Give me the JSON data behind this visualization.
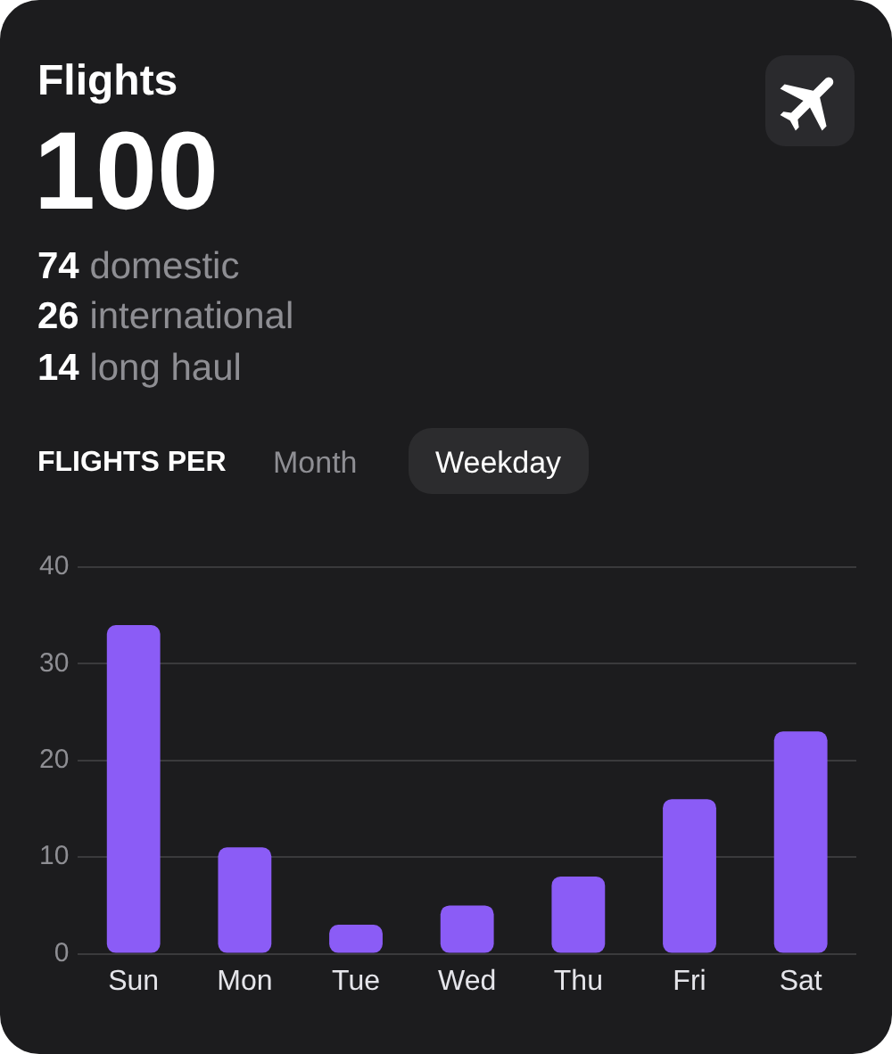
{
  "chart_data": {
    "type": "bar",
    "title": "Flights",
    "annotations": [
      "100",
      "74 domestic",
      "26 international",
      "14 long haul",
      "FLIGHTS PER",
      "Month",
      "Weekday"
    ],
    "categories": [
      "Sun",
      "Mon",
      "Tue",
      "Wed",
      "Thu",
      "Fri",
      "Sat"
    ],
    "values": [
      34,
      11,
      3,
      5,
      8,
      16,
      23
    ],
    "color": "#8b5cf6",
    "ylim": [
      0,
      40
    ],
    "yticks": [
      0,
      10,
      20,
      30,
      40
    ],
    "grid": "y"
  }
}
